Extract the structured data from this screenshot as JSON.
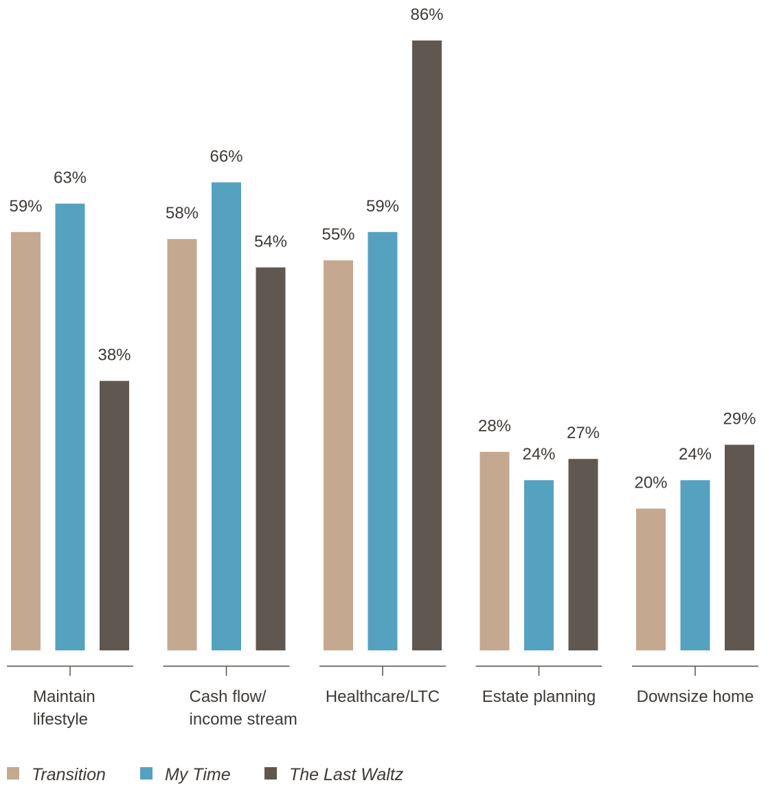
{
  "chart_data": {
    "type": "bar",
    "categories": [
      [
        "Maintain",
        "lifestyle"
      ],
      [
        "Cash flow/",
        "income stream"
      ],
      [
        "Healthcare/LTC"
      ],
      [
        "Estate planning"
      ],
      [
        "Downsize home"
      ]
    ],
    "series": [
      {
        "name": "Transition",
        "color": "#c4a890",
        "values": [
          59,
          58,
          55,
          28,
          20
        ],
        "labels": [
          "59%",
          "58%",
          "55%",
          "28%",
          "20%"
        ]
      },
      {
        "name": "My Time",
        "color": "#55a2c0",
        "values": [
          63,
          66,
          59,
          24,
          24
        ],
        "labels": [
          "63%",
          "66%",
          "59%",
          "24%",
          "24%"
        ]
      },
      {
        "name": "The Last Waltz",
        "color": "#605751",
        "values": [
          38,
          54,
          86,
          27,
          29
        ],
        "labels": [
          "38%",
          "54%",
          "86%",
          "27%",
          "29%"
        ]
      }
    ],
    "value_unit": "%",
    "ylim": [
      0,
      86
    ],
    "grid": false,
    "legend_position": "bottom-left"
  }
}
